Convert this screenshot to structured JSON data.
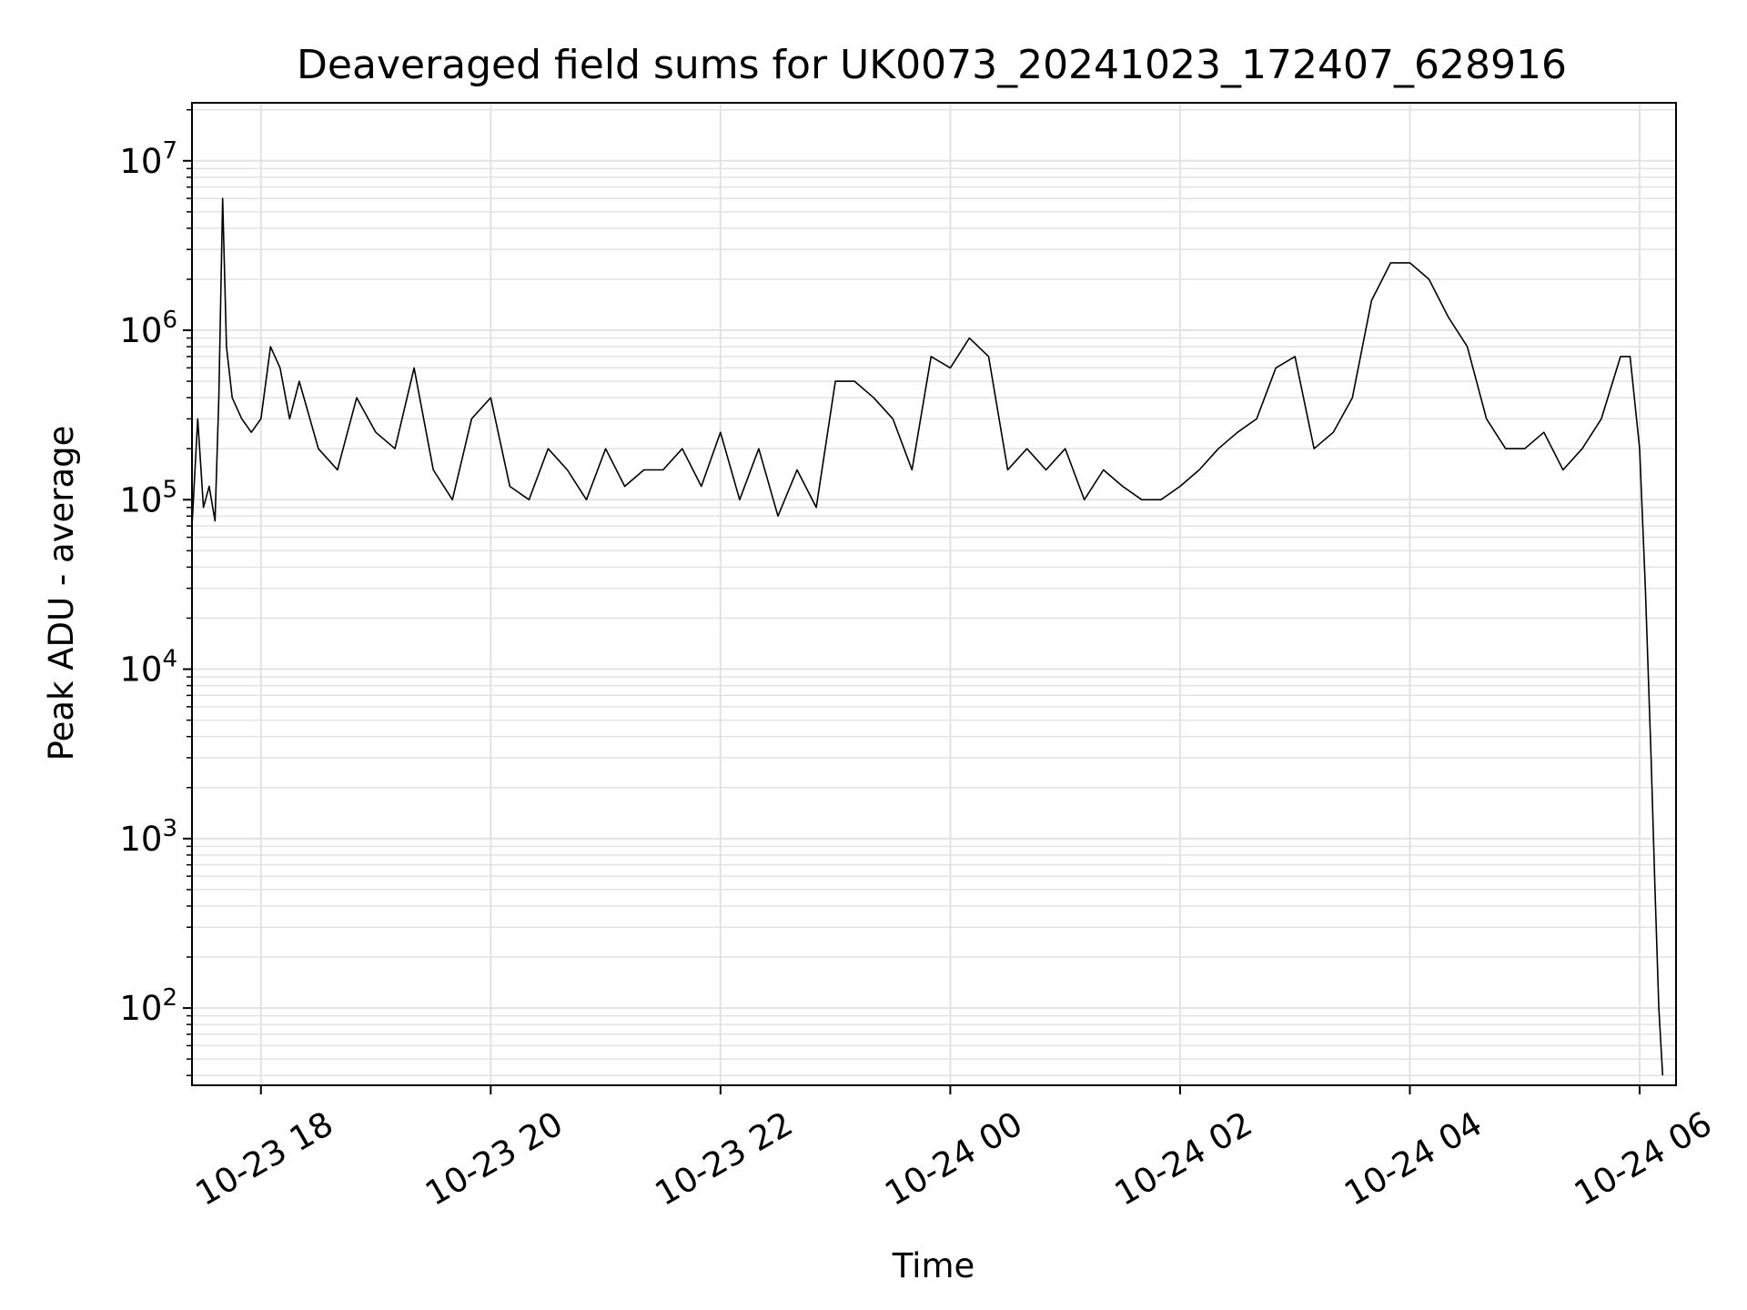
{
  "chart_data": {
    "type": "line",
    "title": "Deaveraged field sums for UK0073_20241023_172407_628916",
    "xlabel": "Time",
    "ylabel": "Peak ADU - average",
    "yscale": "log",
    "ylim": [
      35,
      22000000
    ],
    "xlim": [
      "2024-10-23 17:24",
      "2024-10-24 06:19"
    ],
    "x_ticks": [
      {
        "t": "2024-10-23 18:00",
        "label": "10-23 18"
      },
      {
        "t": "2024-10-23 20:00",
        "label": "10-23 20"
      },
      {
        "t": "2024-10-23 22:00",
        "label": "10-23 22"
      },
      {
        "t": "2024-10-24 00:00",
        "label": "10-24 00"
      },
      {
        "t": "2024-10-24 02:00",
        "label": "10-24 02"
      },
      {
        "t": "2024-10-24 04:00",
        "label": "10-24 04"
      },
      {
        "t": "2024-10-24 06:00",
        "label": "10-24 06"
      }
    ],
    "y_ticks": [
      {
        "v": 100,
        "base": "10",
        "exp": "2"
      },
      {
        "v": 1000,
        "base": "10",
        "exp": "3"
      },
      {
        "v": 10000,
        "base": "10",
        "exp": "4"
      },
      {
        "v": 100000,
        "base": "10",
        "exp": "5"
      },
      {
        "v": 1000000,
        "base": "10",
        "exp": "6"
      },
      {
        "v": 10000000,
        "base": "10",
        "exp": "7"
      }
    ],
    "grid": true,
    "line_color": "#000000",
    "grid_color": "#e3e3e3",
    "series": [
      {
        "x": [
          "2024-10-23 17:24",
          "2024-10-23 17:27",
          "2024-10-23 17:30",
          "2024-10-23 17:33",
          "2024-10-23 17:36",
          "2024-10-23 17:38",
          "2024-10-23 17:40",
          "2024-10-23 17:42",
          "2024-10-23 17:45",
          "2024-10-23 17:50",
          "2024-10-23 17:55",
          "2024-10-23 18:00",
          "2024-10-23 18:05",
          "2024-10-23 18:10",
          "2024-10-23 18:15",
          "2024-10-23 18:20",
          "2024-10-23 18:30",
          "2024-10-23 18:40",
          "2024-10-23 18:50",
          "2024-10-23 19:00",
          "2024-10-23 19:10",
          "2024-10-23 19:20",
          "2024-10-23 19:30",
          "2024-10-23 19:40",
          "2024-10-23 19:50",
          "2024-10-23 20:00",
          "2024-10-23 20:10",
          "2024-10-23 20:20",
          "2024-10-23 20:30",
          "2024-10-23 20:40",
          "2024-10-23 20:50",
          "2024-10-23 21:00",
          "2024-10-23 21:10",
          "2024-10-23 21:20",
          "2024-10-23 21:30",
          "2024-10-23 21:40",
          "2024-10-23 21:50",
          "2024-10-23 22:00",
          "2024-10-23 22:10",
          "2024-10-23 22:20",
          "2024-10-23 22:30",
          "2024-10-23 22:40",
          "2024-10-23 22:50",
          "2024-10-23 23:00",
          "2024-10-23 23:10",
          "2024-10-23 23:20",
          "2024-10-23 23:30",
          "2024-10-23 23:40",
          "2024-10-23 23:50",
          "2024-10-24 00:00",
          "2024-10-24 00:10",
          "2024-10-24 00:20",
          "2024-10-24 00:30",
          "2024-10-24 00:40",
          "2024-10-24 00:50",
          "2024-10-24 01:00",
          "2024-10-24 01:10",
          "2024-10-24 01:20",
          "2024-10-24 01:30",
          "2024-10-24 01:40",
          "2024-10-24 01:50",
          "2024-10-24 02:00",
          "2024-10-24 02:10",
          "2024-10-24 02:20",
          "2024-10-24 02:30",
          "2024-10-24 02:40",
          "2024-10-24 02:50",
          "2024-10-24 03:00",
          "2024-10-24 03:10",
          "2024-10-24 03:20",
          "2024-10-24 03:30",
          "2024-10-24 03:40",
          "2024-10-24 03:50",
          "2024-10-24 04:00",
          "2024-10-24 04:10",
          "2024-10-24 04:20",
          "2024-10-24 04:30",
          "2024-10-24 04:40",
          "2024-10-24 04:50",
          "2024-10-24 05:00",
          "2024-10-24 05:10",
          "2024-10-24 05:20",
          "2024-10-24 05:30",
          "2024-10-24 05:40",
          "2024-10-24 05:50",
          "2024-10-24 05:55",
          "2024-10-24 06:00",
          "2024-10-24 06:03",
          "2024-10-24 06:06",
          "2024-10-24 06:08",
          "2024-10-24 06:10",
          "2024-10-24 06:12"
        ],
        "y": [
          70000,
          300000,
          90000,
          120000,
          75000,
          400000,
          6000000,
          800000,
          400000,
          300000,
          250000,
          300000,
          800000,
          600000,
          300000,
          500000,
          200000,
          150000,
          400000,
          250000,
          200000,
          600000,
          150000,
          100000,
          300000,
          400000,
          120000,
          100000,
          200000,
          150000,
          100000,
          200000,
          120000,
          150000,
          150000,
          200000,
          120000,
          250000,
          100000,
          200000,
          80000,
          150000,
          90000,
          500000,
          500000,
          400000,
          300000,
          150000,
          700000,
          600000,
          900000,
          700000,
          150000,
          200000,
          150000,
          200000,
          100000,
          150000,
          120000,
          100000,
          100000,
          120000,
          150000,
          200000,
          250000,
          300000,
          600000,
          700000,
          200000,
          250000,
          400000,
          1500000,
          2500000,
          2500000,
          2000000,
          1200000,
          800000,
          300000,
          200000,
          200000,
          250000,
          150000,
          200000,
          300000,
          700000,
          700000,
          200000,
          30000,
          3000,
          500,
          100,
          40
        ]
      }
    ]
  }
}
